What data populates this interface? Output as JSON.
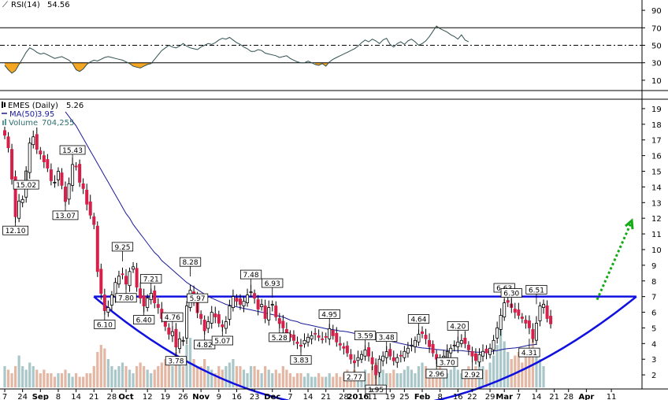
{
  "chart_data": [
    {
      "type": "line",
      "panel": "rsi",
      "legend": {
        "label": "RSI(14)",
        "value": "54.56",
        "color": "#2f4f4f"
      },
      "y_ticks": [
        "90",
        "70",
        "50",
        "30",
        "10"
      ],
      "ylim": [
        0,
        100
      ],
      "reference_levels": [
        70,
        50,
        30
      ],
      "overbought": 70,
      "oversold": 30,
      "values": [
        27,
        22,
        18,
        21,
        28,
        35,
        42,
        47,
        45,
        42,
        40,
        41,
        39,
        37,
        35,
        36,
        37,
        35,
        33,
        29,
        22,
        20,
        23,
        28,
        31,
        33,
        32,
        34,
        36,
        37,
        36,
        35,
        34,
        33,
        31,
        29,
        26,
        25,
        24,
        26,
        28,
        29,
        34,
        39,
        44,
        47,
        50,
        48,
        47,
        49,
        52,
        49,
        47,
        46,
        45,
        48,
        50,
        52,
        51,
        53,
        56,
        58,
        57,
        59,
        56,
        53,
        51,
        48,
        46,
        43,
        43,
        45,
        44,
        41,
        40,
        39,
        38,
        36,
        37,
        38,
        35,
        33,
        31,
        30,
        30,
        32,
        30,
        28,
        27,
        29,
        26,
        31,
        34,
        36,
        38,
        40,
        42,
        44,
        46,
        49,
        53,
        56,
        54,
        57,
        55,
        52,
        56,
        58,
        51,
        48,
        52,
        54,
        51,
        55,
        57,
        54,
        50,
        52,
        55,
        60,
        66,
        72,
        69,
        67,
        65,
        62,
        60,
        57,
        62,
        56,
        54
      ],
      "colors": {
        "line": "#2f4f4f",
        "oversold_fill": "#f5a623",
        "overbought_fill": "#f5a623"
      }
    },
    {
      "type": "candlestick",
      "panel": "price",
      "legend": [
        {
          "label": "EMES (Daily)",
          "value": "5.26",
          "color": "#000000",
          "icon": "candle-icon"
        },
        {
          "label": "MA(50)",
          "value": "3.95",
          "color": "#1a1a99",
          "icon": "line-icon"
        },
        {
          "label": "Volume",
          "value": "704,255",
          "color": "#a9c6c9",
          "icon": "bar-icon"
        }
      ],
      "y_ticks": [
        "19",
        "18",
        "17",
        "16",
        "15",
        "14",
        "13",
        "12",
        "11",
        "10",
        "9",
        "8",
        "7",
        "6",
        "5",
        "4",
        "3",
        "2"
      ],
      "ylim": [
        1.1,
        19.5
      ],
      "x_ticks": [
        {
          "label": "7",
          "i": 0
        },
        {
          "label": "24",
          "i": 5
        },
        {
          "label": "Sep",
          "i": 10
        },
        {
          "label": "8",
          "i": 15
        },
        {
          "label": "14",
          "i": 20
        },
        {
          "label": "21",
          "i": 25
        },
        {
          "label": "28",
          "i": 30
        },
        {
          "label": "Oct",
          "i": 34
        },
        {
          "label": "12",
          "i": 40
        },
        {
          "label": "19",
          "i": 45
        },
        {
          "label": "26",
          "i": 50
        },
        {
          "label": "Nov",
          "i": 55
        },
        {
          "label": "9",
          "i": 60
        },
        {
          "label": "16",
          "i": 65
        },
        {
          "label": "23",
          "i": 70
        },
        {
          "label": "Dec",
          "i": 75
        },
        {
          "label": "7",
          "i": 80
        },
        {
          "label": "14",
          "i": 85
        },
        {
          "label": "21",
          "i": 90
        },
        {
          "label": "28",
          "i": 95
        },
        {
          "label": "2016",
          "i": 99
        },
        {
          "label": "11",
          "i": 103
        },
        {
          "label": "19",
          "i": 108
        },
        {
          "label": "25",
          "i": 112
        },
        {
          "label": "Feb",
          "i": 117
        },
        {
          "label": "8",
          "i": 122
        },
        {
          "label": "16",
          "i": 127
        },
        {
          "label": "22",
          "i": 131
        },
        {
          "label": "29",
          "i": 136
        },
        {
          "label": "Mar",
          "i": 140
        },
        {
          "label": "7",
          "i": 144
        },
        {
          "label": "14",
          "i": 149
        },
        {
          "label": "21",
          "i": 154
        },
        {
          "label": "28",
          "i": 158
        },
        {
          "label": "Apr",
          "i": 163
        },
        {
          "label": "11",
          "i": 170
        }
      ],
      "closes": [
        17.3,
        16.5,
        14.5,
        12.1,
        13.1,
        13.2,
        15.02,
        16.8,
        17.2,
        16.4,
        16.1,
        15.6,
        15.2,
        14.4,
        14.3,
        15.0,
        14.1,
        13.07,
        14.2,
        15.43,
        15.3,
        14.3,
        13.9,
        12.9,
        12.2,
        11.6,
        8.6,
        7.2,
        6.1,
        6.3,
        7.1,
        7.9,
        8.3,
        8.4,
        7.8,
        8.6,
        8.9,
        7.6,
        6.9,
        6.4,
        6.9,
        7.21,
        6.6,
        6.3,
        5.6,
        5.1,
        4.6,
        4.76,
        3.78,
        4.3,
        4.2,
        6.4,
        7.4,
        6.7,
        5.97,
        5.6,
        4.82,
        5.4,
        6.0,
        5.7,
        5.3,
        5.07,
        5.4,
        6.4,
        7.0,
        6.7,
        6.5,
        6.7,
        7.1,
        7.3,
        6.9,
        6.2,
        6.5,
        5.6,
        6.3,
        6.5,
        5.7,
        5.28,
        5.0,
        4.7,
        4.4,
        4.2,
        4.0,
        3.83,
        4.2,
        4.4,
        4.5,
        4.6,
        4.4,
        4.3,
        4.4,
        4.95,
        4.5,
        4.1,
        3.9,
        3.7,
        3.4,
        3.0,
        2.77,
        3.1,
        3.3,
        3.59,
        3.2,
        2.7,
        2.0,
        3.0,
        3.2,
        3.48,
        3.2,
        2.9,
        3.1,
        3.2,
        3.5,
        3.7,
        3.9,
        4.2,
        4.6,
        4.64,
        4.3,
        3.8,
        3.4,
        3.0,
        2.96,
        3.2,
        3.5,
        3.7,
        3.9,
        4.1,
        4.2,
        4.0,
        3.6,
        3.2,
        2.92,
        3.3,
        3.5,
        3.4,
        3.7,
        4.2,
        5.0,
        5.8,
        6.6,
        6.63,
        6.3,
        6.0,
        5.8,
        5.6,
        5.3,
        5.0,
        4.31,
        5.3,
        6.4,
        6.51,
        5.6,
        5.26
      ],
      "volumes": [
        0.3,
        0.25,
        0.2,
        0.3,
        0.45,
        0.3,
        0.25,
        0.35,
        0.3,
        0.25,
        0.2,
        0.25,
        0.2,
        0.2,
        0.15,
        0.2,
        0.2,
        0.25,
        0.2,
        0.15,
        0.2,
        0.15,
        0.15,
        0.2,
        0.2,
        0.3,
        0.5,
        0.6,
        0.55,
        0.4,
        0.3,
        0.25,
        0.3,
        0.35,
        0.3,
        0.25,
        0.2,
        0.3,
        0.35,
        0.3,
        0.25,
        0.2,
        0.25,
        0.3,
        0.35,
        0.4,
        0.35,
        0.3,
        0.5,
        0.35,
        0.3,
        0.6,
        0.7,
        0.4,
        0.3,
        0.3,
        0.4,
        0.3,
        0.25,
        0.2,
        0.3,
        0.25,
        0.3,
        0.35,
        0.4,
        0.3,
        0.3,
        0.25,
        0.2,
        0.3,
        0.3,
        0.25,
        0.2,
        0.3,
        0.25,
        0.2,
        0.25,
        0.2,
        0.3,
        0.25,
        0.2,
        0.15,
        0.2,
        0.2,
        0.15,
        0.2,
        0.15,
        0.15,
        0.2,
        0.15,
        0.15,
        0.2,
        0.15,
        0.2,
        0.15,
        0.2,
        0.25,
        0.2,
        0.25,
        0.2,
        0.2,
        0.25,
        0.2,
        0.3,
        0.35,
        0.3,
        0.25,
        0.2,
        0.2,
        0.25,
        0.2,
        0.2,
        0.25,
        0.3,
        0.25,
        0.2,
        0.3,
        0.35,
        0.3,
        0.25,
        0.2,
        0.25,
        0.3,
        0.25,
        0.2,
        0.25,
        0.3,
        0.25,
        0.2,
        0.25,
        0.3,
        0.2,
        0.3,
        0.35,
        0.3,
        0.25,
        0.35,
        0.45,
        0.6,
        0.9,
        0.65,
        0.5,
        0.4,
        0.45,
        0.5,
        0.35,
        0.55,
        0.45,
        0.7,
        0.5,
        0.4,
        0.3
      ],
      "ma50": [
        null,
        null,
        null,
        null,
        null,
        null,
        null,
        null,
        null,
        null,
        null,
        null,
        null,
        null,
        null,
        null,
        null,
        18.8,
        18.5,
        18.2,
        17.9,
        17.5,
        17.1,
        16.7,
        16.3,
        15.9,
        15.5,
        15.1,
        14.7,
        14.3,
        13.9,
        13.5,
        13.1,
        12.7,
        12.3,
        12.0,
        11.6,
        11.3,
        11.0,
        10.7,
        10.4,
        10.1,
        9.8,
        9.6,
        9.3,
        9.1,
        8.9,
        8.7,
        8.5,
        8.3,
        8.1,
        7.9,
        7.75,
        7.6,
        7.45,
        7.3,
        7.15,
        7.0,
        6.9,
        6.8,
        6.7,
        6.6,
        6.5,
        6.45,
        6.4,
        6.35,
        6.3,
        6.25,
        6.2,
        6.15,
        6.1,
        6.05,
        6.0,
        5.95,
        5.9,
        5.85,
        5.8,
        5.75,
        5.7,
        5.6,
        5.5,
        5.45,
        5.4,
        5.3,
        5.25,
        5.2,
        5.15,
        5.1,
        5.05,
        5.0,
        4.95,
        4.9,
        4.88,
        4.85,
        4.8,
        4.78,
        4.75,
        4.7,
        4.65,
        4.6,
        4.55,
        4.5,
        4.45,
        4.4,
        4.35,
        4.3,
        4.25,
        4.2,
        4.15,
        4.1,
        4.05,
        4.0,
        3.95,
        3.9,
        3.85,
        3.8,
        3.75,
        3.72,
        3.7,
        3.68,
        3.65,
        3.62,
        3.6,
        3.58,
        3.56,
        3.55,
        3.55,
        3.55,
        3.55,
        3.52,
        3.5,
        3.48,
        3.46,
        3.45,
        3.45,
        3.45,
        3.48,
        3.52,
        3.55,
        3.6,
        3.65,
        3.68,
        3.7,
        3.72,
        3.75,
        3.8,
        3.85,
        3.9,
        3.92,
        3.95
      ],
      "price_labels": [
        {
          "text": "12.10",
          "i": 3,
          "pos": "below"
        },
        {
          "text": "15.02",
          "i": 6,
          "pos": "below"
        },
        {
          "text": "13.07",
          "i": 17,
          "pos": "below"
        },
        {
          "text": "15.43",
          "i": 19,
          "pos": "above"
        },
        {
          "text": "6.10",
          "i": 28,
          "pos": "below"
        },
        {
          "text": "9.25",
          "i": 33,
          "pos": "above"
        },
        {
          "text": "7.80",
          "i": 34,
          "pos": "below"
        },
        {
          "text": "6.40",
          "i": 39,
          "pos": "below"
        },
        {
          "text": "7.21",
          "i": 41,
          "pos": "above"
        },
        {
          "text": "4.76",
          "i": 47,
          "pos": "above"
        },
        {
          "text": "3.78",
          "i": 48,
          "pos": "below"
        },
        {
          "text": "8.28",
          "i": 52,
          "pos": "above"
        },
        {
          "text": "5.97",
          "i": 54,
          "pos": "above"
        },
        {
          "text": "4.82",
          "i": 56,
          "pos": "below"
        },
        {
          "text": "5.07",
          "i": 61,
          "pos": "below"
        },
        {
          "text": "7.48",
          "i": 69,
          "pos": "above"
        },
        {
          "text": "6.93",
          "i": 75,
          "pos": "above"
        },
        {
          "text": "5.28",
          "i": 77,
          "pos": "below"
        },
        {
          "text": "3.83",
          "i": 83,
          "pos": "below"
        },
        {
          "text": "4.95",
          "i": 91,
          "pos": "above"
        },
        {
          "text": "2.77",
          "i": 98,
          "pos": "below"
        },
        {
          "text": "3.59",
          "i": 101,
          "pos": "above"
        },
        {
          "text": "1.95",
          "i": 104,
          "pos": "below"
        },
        {
          "text": "3.48",
          "i": 107,
          "pos": "above"
        },
        {
          "text": "4.64",
          "i": 116,
          "pos": "above"
        },
        {
          "text": "2.96",
          "i": 121,
          "pos": "below"
        },
        {
          "text": "3.70",
          "i": 124,
          "pos": "below"
        },
        {
          "text": "4.20",
          "i": 127,
          "pos": "above"
        },
        {
          "text": "2.92",
          "i": 131,
          "pos": "below"
        },
        {
          "text": "6.63",
          "i": 140,
          "pos": "above"
        },
        {
          "text": "6.30",
          "i": 142,
          "pos": "above"
        },
        {
          "text": "4.31",
          "i": 147,
          "pos": "below"
        },
        {
          "text": "6.51",
          "i": 149,
          "pos": "above"
        }
      ],
      "annotations": {
        "resistance_level": 7.0,
        "resistance_color": "#1010e0",
        "arc_color": "#1010e0",
        "arrow_color": "#11aa11"
      },
      "colors": {
        "up": "#ffffff",
        "down": "#d6204a",
        "wick": "#000000",
        "volume": "#a9c6c9",
        "volume_down": "#e3b7a3",
        "ma": "#1a1a99"
      }
    }
  ]
}
